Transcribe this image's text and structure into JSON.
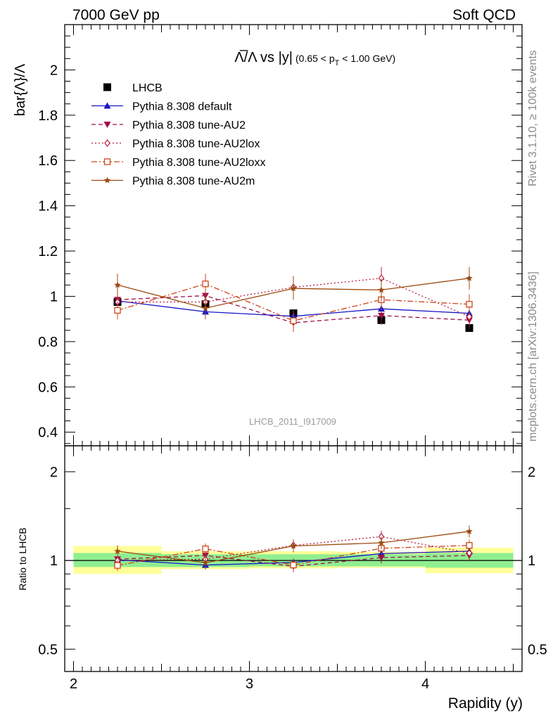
{
  "header": {
    "left": "7000 GeV pp",
    "right": "Soft QCD"
  },
  "side_labels": {
    "rivet": "Rivet 3.1.10, ≥ 100k events",
    "source": "mcplots.cern.ch [arXiv:1306.3436]"
  },
  "watermark": "LHCB_2011_I917009",
  "chart_data": [
    {
      "type": "line",
      "title_main": "Λ̅/Λ vs |y|",
      "title_sub": "(0.65 < p",
      "title_sub_index": "T",
      "title_sub_tail": " < 1.00 GeV)",
      "xlabel": "",
      "ylabel": "bar{Λ}/Λ",
      "xlim": [
        1.95,
        4.55
      ],
      "ylim": [
        0.34,
        2.2
      ],
      "y_ticks": [
        0.4,
        0.6,
        0.8,
        1,
        1.2,
        1.4,
        1.6,
        1.8,
        2
      ],
      "y_tick_labels": [
        "0.4",
        "0.6",
        "0.8",
        "1",
        "1.2",
        "1.4",
        "1.6",
        "1.8",
        "2"
      ],
      "x": [
        2.25,
        2.75,
        3.25,
        3.75,
        4.25
      ],
      "series": [
        {
          "name": "LHCB",
          "color": "#000000",
          "marker": "square",
          "style": "none",
          "values": [
            0.975,
            0.965,
            0.925,
            0.895,
            0.86
          ]
        },
        {
          "name": "Pythia 8.308 default",
          "color": "#1515c8",
          "marker": "triangle-up",
          "style": "solid",
          "values": [
            0.98,
            0.932,
            0.912,
            0.945,
            0.925
          ],
          "errors": [
            0.03,
            0.03,
            0.03,
            0.03,
            0.03
          ]
        },
        {
          "name": "Pythia 8.308 tune-AU2",
          "color": "#a0104a",
          "marker": "triangle-down",
          "style": "dashed",
          "values": [
            0.985,
            1.003,
            0.883,
            0.915,
            0.895
          ],
          "errors": [
            0.04,
            0.04,
            0.04,
            0.04,
            0.04
          ]
        },
        {
          "name": "Pythia 8.308 tune-AU2lox",
          "color": "#b5203c",
          "marker": "diamond-open",
          "style": "dotted",
          "values": [
            0.975,
            0.975,
            1.04,
            1.08,
            0.91
          ],
          "errors": [
            0.045,
            0.045,
            0.05,
            0.05,
            0.045
          ]
        },
        {
          "name": "Pythia 8.308 tune-AU2loxx",
          "color": "#cc4418",
          "marker": "square-open",
          "style": "dashdot",
          "values": [
            0.938,
            1.055,
            0.892,
            0.985,
            0.965
          ],
          "errors": [
            0.04,
            0.045,
            0.045,
            0.045,
            0.045
          ]
        },
        {
          "name": "Pythia 8.308 tune-AU2m",
          "color": "#9c4a10",
          "marker": "star",
          "style": "solid",
          "values": [
            1.05,
            0.948,
            1.035,
            1.028,
            1.08
          ],
          "errors": [
            0.05,
            0.05,
            0.05,
            0.05,
            0.05
          ]
        }
      ]
    },
    {
      "type": "line",
      "xlabel": "Rapidity (y)",
      "ylabel": "Ratio to LHCB",
      "log_y": true,
      "xlim": [
        1.95,
        4.55
      ],
      "ylim": [
        0.42,
        2.45
      ],
      "x_ticks": [
        2,
        3,
        4
      ],
      "x_tick_labels": [
        "2",
        "3",
        "4"
      ],
      "y_ticks": [
        0.5,
        1,
        2
      ],
      "y_tick_labels": [
        "0.5",
        "1",
        "2"
      ],
      "bands": {
        "green_color": "#90ee90",
        "yellow_color": "#ffff99",
        "bin_edges": [
          2.0,
          2.5,
          3.0,
          3.5,
          4.0,
          4.5
        ],
        "green": [
          [
            0.95,
            1.06
          ],
          [
            0.95,
            1.05
          ],
          [
            0.955,
            1.05
          ],
          [
            0.955,
            1.05
          ],
          [
            0.945,
            1.06
          ]
        ],
        "yellow": [
          [
            0.9,
            1.12
          ],
          [
            0.935,
            1.075
          ],
          [
            0.94,
            1.075
          ],
          [
            0.945,
            1.07
          ],
          [
            0.905,
            1.105
          ]
        ]
      },
      "series": [
        {
          "name": "Pythia 8.308 default",
          "values": [
            1.005,
            0.965,
            0.985,
            1.055,
            1.075
          ]
        },
        {
          "name": "Pythia 8.308 tune-AU2",
          "values": [
            1.01,
            1.04,
            0.955,
            1.022,
            1.04
          ]
        },
        {
          "name": "Pythia 8.308 tune-AU2lox",
          "values": [
            1.0,
            1.01,
            1.125,
            1.205,
            1.06
          ]
        },
        {
          "name": "Pythia 8.308 tune-AU2loxx",
          "values": [
            0.962,
            1.095,
            0.965,
            1.1,
            1.125
          ]
        },
        {
          "name": "Pythia 8.308 tune-AU2m",
          "values": [
            1.075,
            0.982,
            1.12,
            1.148,
            1.255
          ]
        }
      ]
    }
  ]
}
